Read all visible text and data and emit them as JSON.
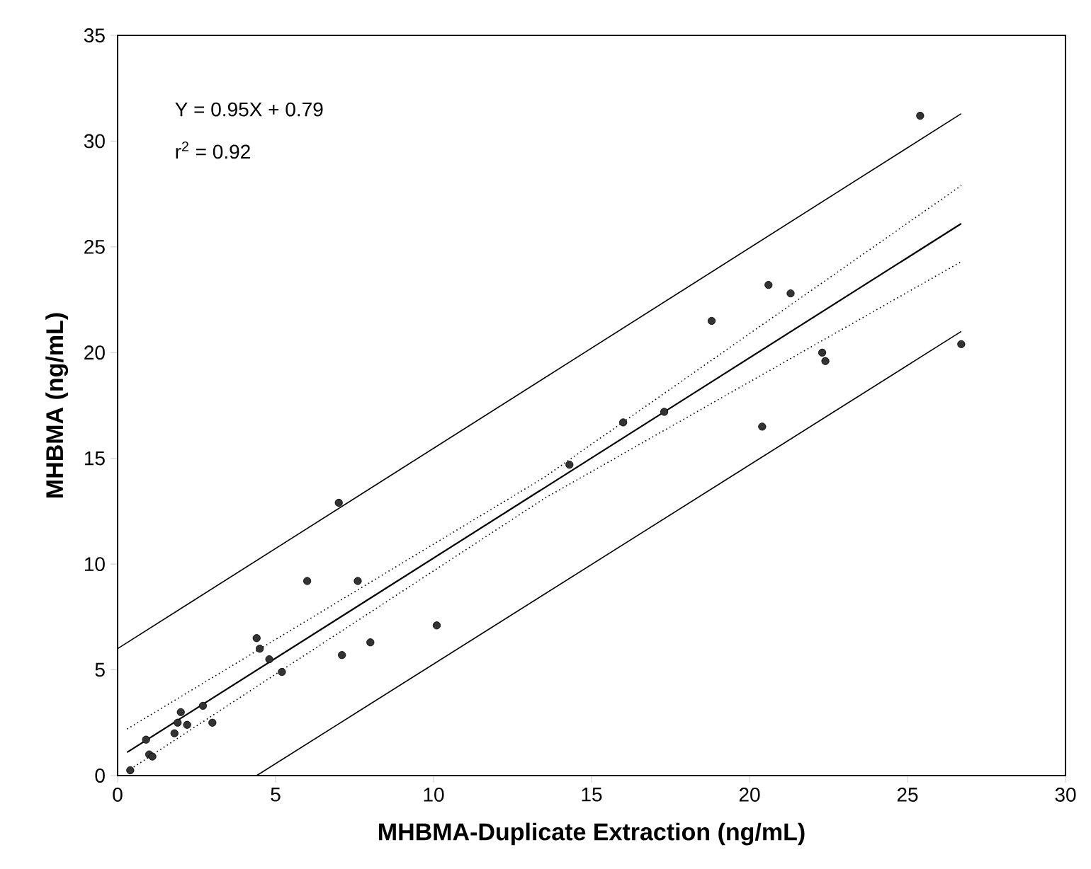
{
  "chart_data": {
    "type": "scatter",
    "xlabel": "MHBMA-Duplicate Extraction (ng/mL)",
    "ylabel": "MHBMA (ng/mL)",
    "annotations": [
      "Y = 0.95X + 0.79",
      "r$^{2}$ = 0.92"
    ],
    "xlim": [
      0,
      30
    ],
    "ylim": [
      0,
      35
    ],
    "xticks": [
      0,
      5,
      10,
      15,
      20,
      25,
      30
    ],
    "yticks": [
      0,
      5,
      10,
      15,
      20,
      25,
      30,
      35
    ],
    "grid": false,
    "series": [
      {
        "marker": "circle",
        "color": "#333333",
        "x": [
          0.4,
          0.9,
          1.0,
          1.1,
          1.8,
          1.9,
          2.0,
          2.2,
          2.7,
          3.0,
          4.4,
          4.5,
          4.8,
          5.2,
          6.0,
          7.0,
          7.1,
          7.6,
          8.0,
          10.1,
          14.3,
          16.0,
          17.3,
          18.8,
          20.4,
          20.6,
          21.3,
          22.3,
          22.4,
          25.4,
          26.7
        ],
        "values": [
          0.25,
          1.7,
          1.0,
          0.9,
          2.0,
          2.5,
          3.0,
          2.4,
          3.3,
          2.5,
          6.5,
          6.0,
          5.5,
          4.9,
          9.2,
          12.9,
          5.7,
          9.2,
          6.3,
          7.1,
          14.7,
          16.7,
          17.2,
          21.5,
          16.5,
          23.2,
          22.8,
          20.0,
          19.6,
          31.2,
          20.4
        ]
      },
      {
        "type": "line",
        "line_style": "solid",
        "color": "#000000",
        "x": [
          0.3,
          26.7
        ],
        "values": [
          1.1,
          26.1
        ]
      },
      {
        "type": "line",
        "line_style": "dotted",
        "color": "#000000",
        "x": [
          0.3,
          13.5,
          26.7
        ],
        "values": [
          2.2,
          14.1,
          27.9
        ]
      },
      {
        "type": "line",
        "line_style": "dotted",
        "color": "#000000",
        "x": [
          0.3,
          13.5,
          26.7
        ],
        "values": [
          0.2,
          13.1,
          24.3
        ]
      },
      {
        "type": "line",
        "line_style": "solid",
        "color": "#000000",
        "x": [
          0,
          26.7
        ],
        "values": [
          6.0,
          31.3
        ]
      },
      {
        "type": "line",
        "line_style": "solid",
        "color": "#000000",
        "x": [
          4.4,
          26.7
        ],
        "values": [
          0,
          21.0
        ]
      }
    ]
  }
}
